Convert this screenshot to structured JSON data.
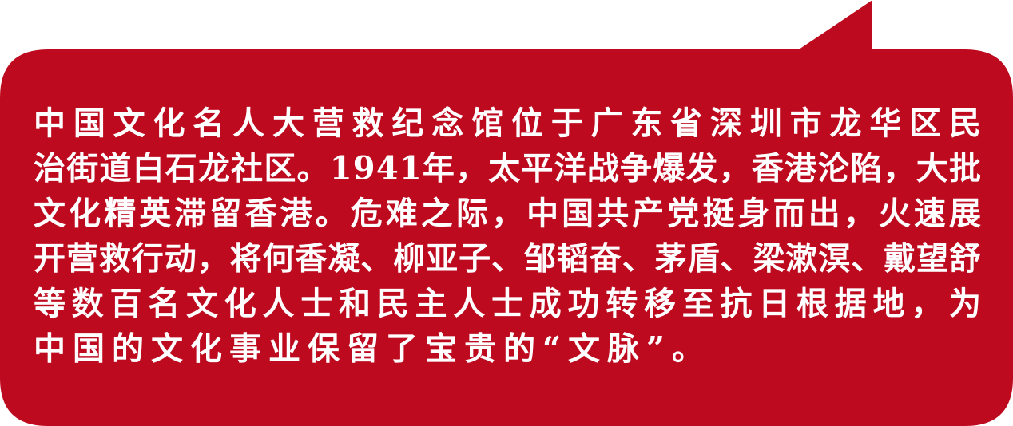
{
  "bubble": {
    "lines": [
      "中国文化名人大营救纪念馆位于广东省深圳市龙华区民",
      "治街道白石龙社区。1941年，太平洋战争爆发，香港沦陷，大批",
      "文化精英滞留香港。危难之际，中国共产党挺身而出，火速展",
      "开营救行动，将何香凝、柳亚子、邹韬奋、茅盾、梁漱溟、戴望舒",
      "等数百名文化人士和民主人士成功转移至抗日根据地，为",
      "中国的文化事业保留了宝贵的“文脉”。"
    ]
  }
}
